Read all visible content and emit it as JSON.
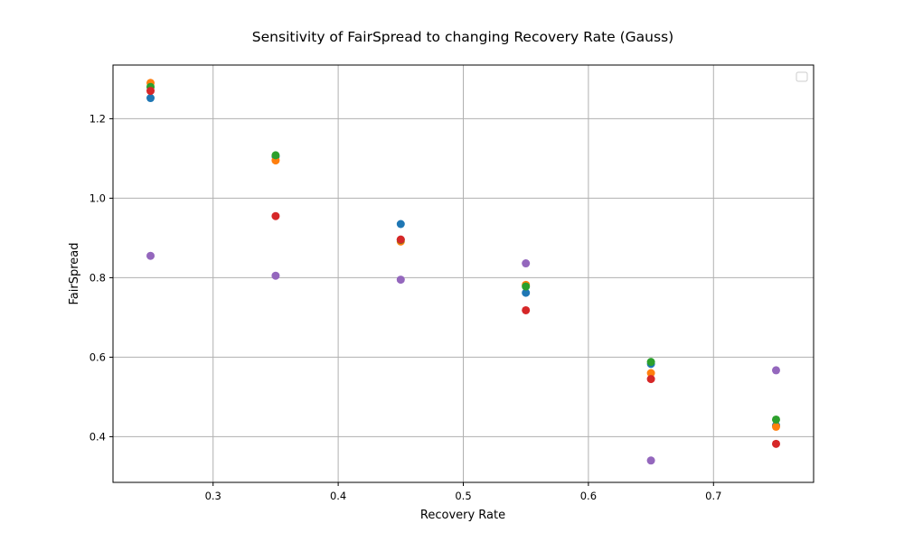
{
  "chart_data": {
    "type": "scatter",
    "title": "Sensitivity of FairSpread to changing Recovery Rate (Gauss)",
    "xlabel": "Recovery Rate",
    "ylabel": "FairSpread",
    "xlim": [
      0.22,
      0.78
    ],
    "ylim": [
      0.285,
      1.335
    ],
    "xticks": [
      0.3,
      0.4,
      0.5,
      0.6,
      0.7
    ],
    "yticks": [
      0.4,
      0.6,
      0.8,
      1.0,
      1.2
    ],
    "xtick_labels": [
      "0.3",
      "0.4",
      "0.5",
      "0.6",
      "0.7"
    ],
    "ytick_labels": [
      "0.4",
      "0.6",
      "0.8",
      "1.0",
      "1.2"
    ],
    "grid": true,
    "legend": "top-right (empty)",
    "x": [
      0.25,
      0.35,
      0.45,
      0.55,
      0.65,
      0.75
    ],
    "series": [
      {
        "color": "#1f77b4",
        "values": [
          1.252,
          1.105,
          0.935,
          0.762,
          0.583,
          0.428
        ]
      },
      {
        "color": "#ff7f0e",
        "values": [
          1.29,
          1.095,
          0.891,
          0.782,
          0.56,
          0.425
        ]
      },
      {
        "color": "#2ca02c",
        "values": [
          1.28,
          1.108,
          0.895,
          0.778,
          0.588,
          0.443
        ]
      },
      {
        "color": "#d62728",
        "values": [
          1.27,
          0.955,
          0.896,
          0.718,
          0.545,
          0.382
        ]
      },
      {
        "color": "#9467bd",
        "values": [
          0.855,
          0.805,
          0.795,
          0.836,
          0.34,
          0.567
        ]
      }
    ]
  }
}
